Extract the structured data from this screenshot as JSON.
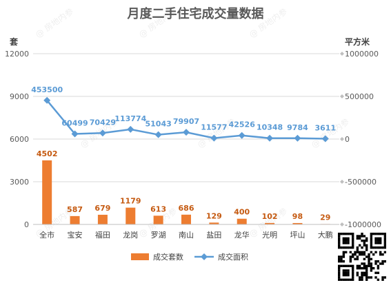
{
  "chart_data": {
    "type": "bar+line",
    "title": "月度二手住宅成交量数据",
    "left_axis_unit": "套",
    "right_axis_unit": "平方米",
    "categories": [
      "全市",
      "宝安",
      "福田",
      "龙岗",
      "罗湖",
      "南山",
      "盐田",
      "龙华",
      "光明",
      "坪山",
      "大鹏"
    ],
    "y_left": {
      "min": 0,
      "max": 12000,
      "ticks": [
        0,
        3000,
        6000,
        9000,
        12000
      ]
    },
    "y_right": {
      "min": -1000000,
      "max": 1000000,
      "ticks": [
        -1000000,
        -500000,
        0,
        500000,
        1000000
      ]
    },
    "series": [
      {
        "name": "成交套数",
        "type": "bar",
        "axis": "left",
        "color": "#ED7D31",
        "values": [
          4502,
          587,
          679,
          1179,
          613,
          686,
          129,
          400,
          102,
          98,
          29
        ]
      },
      {
        "name": "成交面积",
        "type": "line",
        "axis": "right",
        "color": "#5B9BD5",
        "values": [
          453500,
          60499,
          70429,
          113774,
          51043,
          79907,
          11577,
          42526,
          10348,
          9784,
          3611
        ]
      }
    ],
    "grid": true,
    "legend": "bottom"
  },
  "watermark": "房地内参"
}
